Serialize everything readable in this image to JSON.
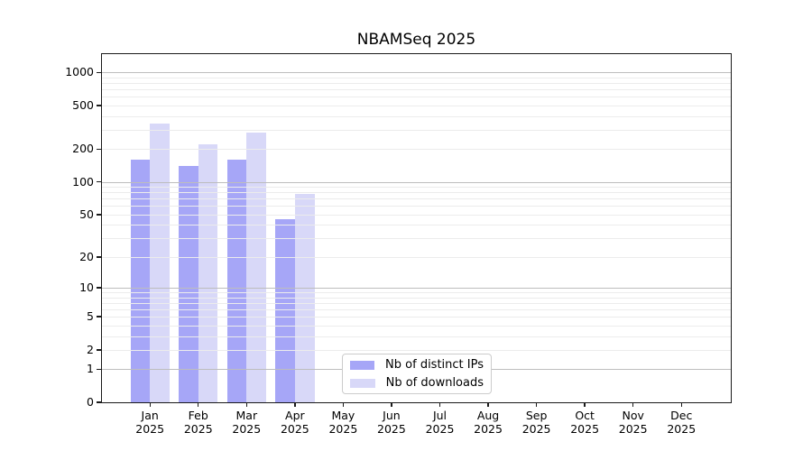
{
  "chart_data": {
    "type": "bar",
    "title": "NBAMSeq 2025",
    "x_year": "2025",
    "categories": [
      "Jan",
      "Feb",
      "Mar",
      "Apr",
      "May",
      "Jun",
      "Jul",
      "Aug",
      "Sep",
      "Oct",
      "Nov",
      "Dec"
    ],
    "series": [
      {
        "name": "Nb of distinct IPs",
        "key": "distinct-ips",
        "color": "#a6a6f7",
        "values": [
          160,
          139,
          160,
          45,
          null,
          null,
          null,
          null,
          null,
          null,
          null,
          null
        ]
      },
      {
        "name": "Nb of downloads",
        "key": "downloads",
        "color": "#d8d8f8",
        "values": [
          342,
          222,
          283,
          77,
          null,
          null,
          null,
          null,
          null,
          null,
          null,
          null
        ]
      }
    ],
    "y_axis": {
      "scale": "log10(value+1)",
      "tick_values": [
        0,
        1,
        2,
        5,
        10,
        20,
        50,
        100,
        200,
        500,
        1000
      ],
      "top_value": 1465
    },
    "grid": {
      "major_values": [
        1,
        10,
        100,
        1000
      ],
      "minor_rule": "m×10^k for m=2..9, k=0..2",
      "major_color": "#bdbdbd",
      "minor_color": "#ececec",
      "drawn_over_bars": true
    },
    "legend": {
      "position": "bottom-center",
      "entries": [
        "Nb of distinct IPs",
        "Nb of downloads"
      ]
    }
  }
}
